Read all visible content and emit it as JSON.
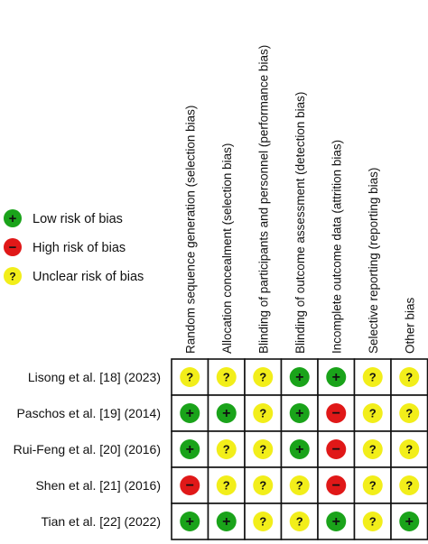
{
  "chart_data": {
    "type": "table",
    "title": "",
    "legend": {
      "placement": "left",
      "items": [
        {
          "key": "low",
          "symbol": "+",
          "label": "Low risk of bias",
          "color": "#1aa31a"
        },
        {
          "key": "high",
          "symbol": "−",
          "label": "High risk of bias",
          "color": "#e01818"
        },
        {
          "key": "unclear",
          "symbol": "?",
          "label": "Unclear risk of bias",
          "color": "#f2ee1a"
        }
      ]
    },
    "domains": [
      "Random sequence generation (selection bias)",
      "Allocation concealment (selection bias)",
      "Blinding of participants and personnel (performance bias)",
      "Blinding of outcome assessment (detection bias)",
      "Incomplete outcome data (attrition bias)",
      "Selective reporting (reporting bias)",
      "Other bias"
    ],
    "studies": [
      {
        "name": "Lisong et al. [18] (2023)",
        "ratings": [
          "unclear",
          "unclear",
          "unclear",
          "low",
          "low",
          "unclear",
          "unclear"
        ]
      },
      {
        "name": "Paschos et al. [19] (2014)",
        "ratings": [
          "low",
          "low",
          "unclear",
          "low",
          "high",
          "unclear",
          "unclear"
        ]
      },
      {
        "name": "Rui-Feng et al. [20] (2016)",
        "ratings": [
          "low",
          "unclear",
          "unclear",
          "low",
          "high",
          "unclear",
          "unclear"
        ]
      },
      {
        "name": "Shen et al. [21] (2016)",
        "ratings": [
          "high",
          "unclear",
          "unclear",
          "unclear",
          "high",
          "unclear",
          "unclear"
        ]
      },
      {
        "name": "Tian et al. [22] (2022)",
        "ratings": [
          "low",
          "low",
          "unclear",
          "unclear",
          "low",
          "unclear",
          "low"
        ]
      }
    ]
  }
}
